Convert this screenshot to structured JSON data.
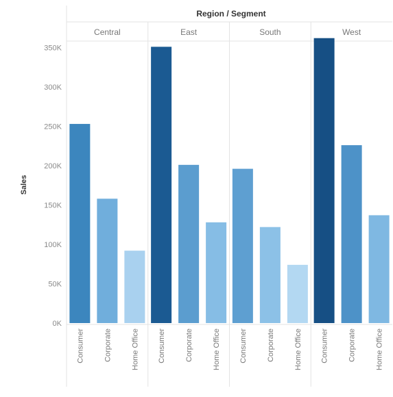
{
  "chart_data": {
    "type": "bar",
    "header_title": "Region / Segment",
    "ylabel": "Sales",
    "ylim": [
      0,
      380000
    ],
    "yticks": [
      {
        "value": 0,
        "label": "0K"
      },
      {
        "value": 50000,
        "label": "50K"
      },
      {
        "value": 100000,
        "label": "100K"
      },
      {
        "value": 150000,
        "label": "150K"
      },
      {
        "value": 200000,
        "label": "200K"
      },
      {
        "value": 250000,
        "label": "250K"
      },
      {
        "value": 300000,
        "label": "300K"
      },
      {
        "value": 350000,
        "label": "350K"
      }
    ],
    "grid": false,
    "regions": [
      {
        "name": "Central",
        "bars": [
          {
            "segment": "Consumer",
            "value": 253000,
            "color": "#3c86be"
          },
          {
            "segment": "Corporate",
            "value": 158000,
            "color": "#70aedc"
          },
          {
            "segment": "Home Office",
            "value": 92000,
            "color": "#a9d1ef"
          }
        ]
      },
      {
        "name": "East",
        "bars": [
          {
            "segment": "Consumer",
            "value": 351000,
            "color": "#1b5a92"
          },
          {
            "segment": "Corporate",
            "value": 201000,
            "color": "#5b9dcf"
          },
          {
            "segment": "Home Office",
            "value": 128000,
            "color": "#86bde5"
          }
        ]
      },
      {
        "name": "South",
        "bars": [
          {
            "segment": "Consumer",
            "value": 196000,
            "color": "#5e9fd1"
          },
          {
            "segment": "Corporate",
            "value": 122000,
            "color": "#8cc1e7"
          },
          {
            "segment": "Home Office",
            "value": 74000,
            "color": "#b3d8f2"
          }
        ]
      },
      {
        "name": "West",
        "bars": [
          {
            "segment": "Consumer",
            "value": 362000,
            "color": "#164f84"
          },
          {
            "segment": "Corporate",
            "value": 226000,
            "color": "#4d92c8"
          },
          {
            "segment": "Home Office",
            "value": 137000,
            "color": "#7fb8e2"
          }
        ]
      }
    ]
  }
}
